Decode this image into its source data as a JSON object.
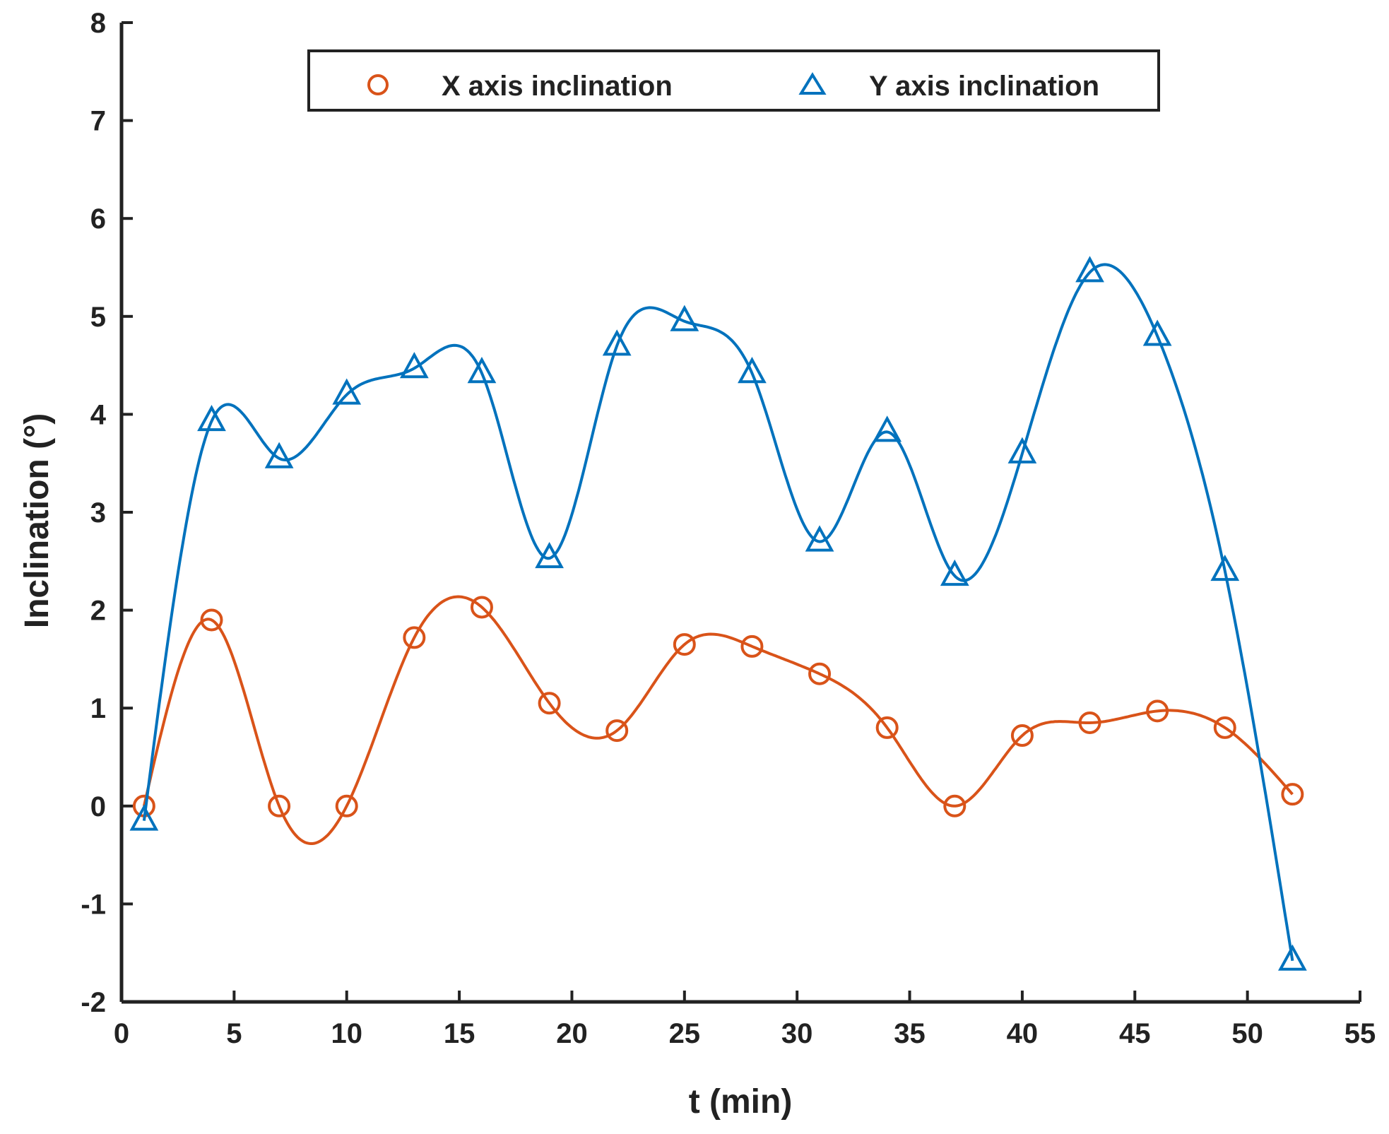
{
  "chart_data": {
    "type": "line",
    "title": "",
    "xlabel": "t (min)",
    "ylabel": "Inclination (°)",
    "xlim": [
      0,
      55
    ],
    "ylim": [
      -2,
      8
    ],
    "xticks": [
      0,
      5,
      10,
      15,
      20,
      25,
      30,
      35,
      40,
      45,
      50,
      55
    ],
    "yticks": [
      -2,
      -1,
      0,
      1,
      2,
      3,
      4,
      5,
      6,
      7,
      8
    ],
    "grid": false,
    "legend_position": "top",
    "x": [
      1,
      4,
      7,
      10,
      13,
      16,
      19,
      22,
      25,
      28,
      31,
      34,
      37,
      40,
      43,
      46,
      49,
      52
    ],
    "series": [
      {
        "name": "X axis inclination",
        "marker": "circle",
        "color": "#d95319",
        "values": [
          0.0,
          1.9,
          0.0,
          0.0,
          1.72,
          2.03,
          1.05,
          0.77,
          1.65,
          1.63,
          1.35,
          0.8,
          0.0,
          0.72,
          0.85,
          0.97,
          0.8,
          0.12
        ]
      },
      {
        "name": "Y axis inclination",
        "marker": "triangle",
        "color": "#0072bd",
        "values": [
          -0.15,
          3.93,
          3.55,
          4.2,
          4.47,
          4.42,
          2.53,
          4.7,
          4.95,
          4.42,
          2.7,
          3.82,
          2.35,
          3.6,
          5.45,
          4.8,
          2.4,
          -1.58
        ]
      }
    ]
  }
}
